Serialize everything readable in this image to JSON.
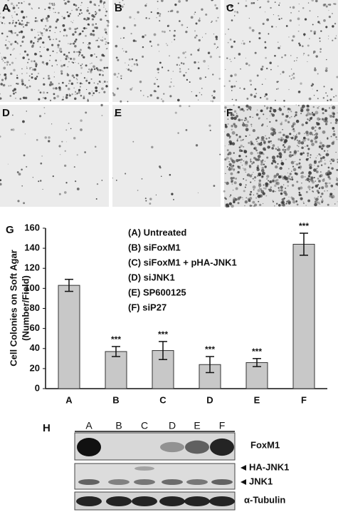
{
  "micrographs": {
    "labels": [
      "A",
      "B",
      "C",
      "D",
      "E",
      "F"
    ]
  },
  "chart_data": {
    "type": "bar",
    "panel_label": "G",
    "ylabel": "Cell Colonies on Soft Agar",
    "ylabel2": "(Number/Field)",
    "categories": [
      "A",
      "B",
      "C",
      "D",
      "E",
      "F"
    ],
    "values": [
      103,
      37,
      38,
      24,
      26,
      144
    ],
    "errors": [
      6,
      5,
      9,
      8,
      4,
      11
    ],
    "significance": [
      null,
      "***",
      "***",
      "***",
      "***",
      "***"
    ],
    "legend": [
      "(A) Untreated",
      "(B) siFoxM1",
      "(C) siFoxM1 + pHA-JNK1",
      "(D) siJNK1",
      "(E) SP600125",
      "(F) siP27"
    ],
    "color": "#c8c8c8",
    "ylim": [
      0,
      160
    ],
    "yticks": [
      0,
      20,
      40,
      60,
      80,
      100,
      120,
      140,
      160
    ]
  },
  "blot": {
    "panel_label": "H",
    "lanes": [
      "A",
      "B",
      "C",
      "D",
      "E",
      "F"
    ],
    "bands": [
      "FoxM1",
      "HA-JNK1",
      "JNK1",
      "α-Tubulin"
    ]
  }
}
